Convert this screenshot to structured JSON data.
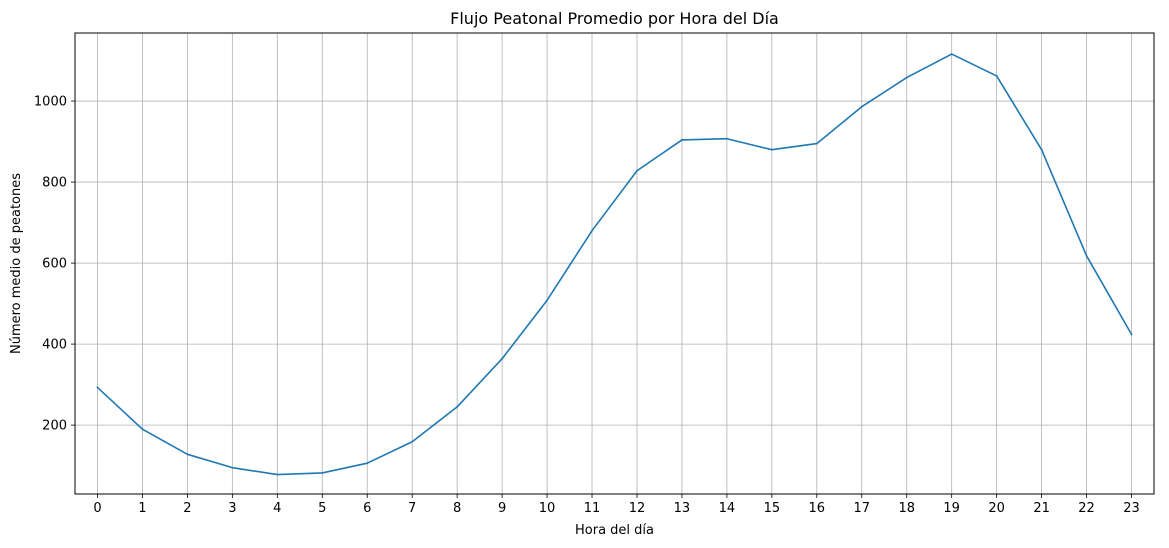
{
  "chart_data": {
    "type": "line",
    "title": "Flujo Peatonal Promedio por Hora del Día",
    "xlabel": "Hora del día",
    "ylabel": "Número medio de peatones",
    "x": [
      0,
      1,
      2,
      3,
      4,
      5,
      6,
      7,
      8,
      9,
      10,
      11,
      12,
      13,
      14,
      15,
      16,
      17,
      18,
      19,
      20,
      21,
      22,
      23
    ],
    "x_ticks": [
      "0",
      "1",
      "2",
      "3",
      "4",
      "5",
      "6",
      "7",
      "8",
      "9",
      "10",
      "11",
      "12",
      "13",
      "14",
      "15",
      "16",
      "17",
      "18",
      "19",
      "20",
      "21",
      "22",
      "23"
    ],
    "series": [
      {
        "values": [
          293,
          190,
          128,
          95,
          78,
          82,
          106,
          159,
          245,
          364,
          508,
          680,
          828,
          904,
          907,
          880,
          895,
          986,
          1058,
          1116,
          1062,
          880,
          618,
          424
        ],
        "color": "#1f77b4"
      }
    ],
    "xlim": [
      -0.5,
      23.5
    ],
    "ylim": [
      30,
      1168
    ],
    "y_ticks": [
      200,
      400,
      600,
      800,
      1000
    ],
    "y_tick_labels": [
      "200",
      "400",
      "600",
      "800",
      "1000"
    ],
    "grid": true,
    "grid_color": "#b0b0b0",
    "legend": false
  }
}
